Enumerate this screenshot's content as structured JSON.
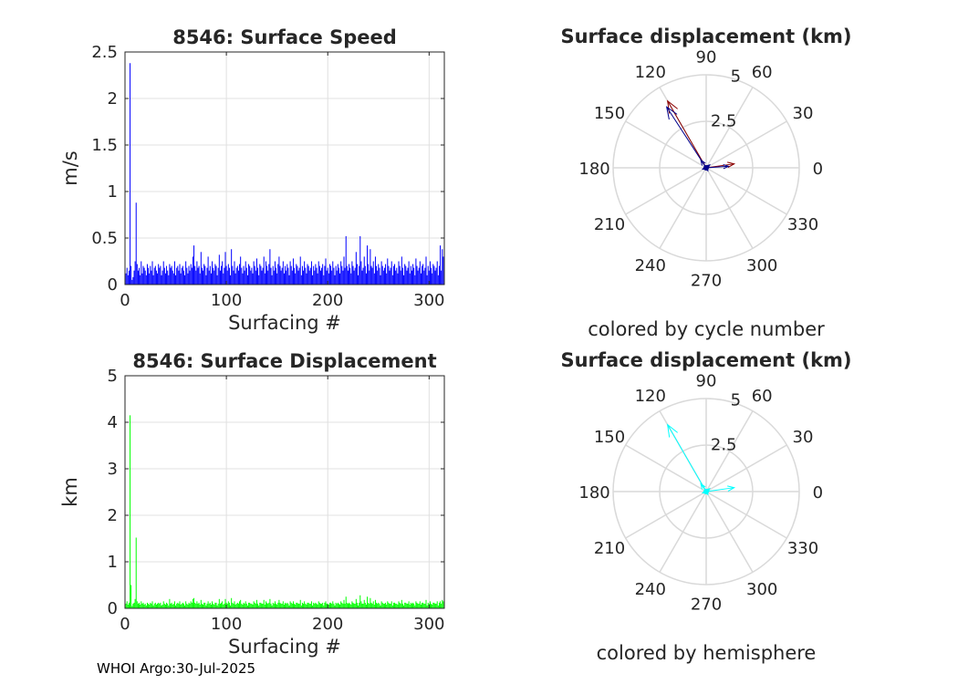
{
  "footer": "WHOI Argo:30-Jul-2025",
  "colors": {
    "speed": "#0000ff",
    "displacement": "#00ff00",
    "polar_cycle_a": "#8b0000",
    "polar_cycle_b": "#00008b",
    "polar_hemisphere": "#00ffff",
    "grid": "#d9d9d9"
  },
  "chart_data": [
    {
      "type": "bar",
      "title": "8546: Surface Speed",
      "xlabel": "Surfacing #",
      "ylabel": "m/s",
      "xlim": [
        0,
        315
      ],
      "ylim": [
        0,
        2.5
      ],
      "xticks": [
        0,
        100,
        200,
        300
      ],
      "yticks": [
        0,
        0.5,
        1,
        1.5,
        2,
        2.5
      ],
      "ytick_labels": [
        "0",
        "0.5",
        "1",
        "1.5",
        "2",
        "2.5"
      ],
      "grid": true,
      "x_start": 1,
      "values": [
        0.12,
        0.18,
        0.1,
        0.15,
        2.38,
        0.2,
        0.05,
        0.08,
        0.15,
        0.25,
        0.88,
        0.22,
        0.15,
        0.18,
        0.1,
        0.25,
        0.12,
        0.2,
        0.18,
        0.15,
        0.1,
        0.22,
        0.18,
        0.12,
        0.2,
        0.15,
        0.25,
        0.1,
        0.18,
        0.2,
        0.15,
        0.12,
        0.22,
        0.18,
        0.2,
        0.1,
        0.15,
        0.25,
        0.18,
        0.12,
        0.2,
        0.15,
        0.1,
        0.22,
        0.18,
        0.2,
        0.15,
        0.12,
        0.25,
        0.1,
        0.18,
        0.2,
        0.15,
        0.22,
        0.12,
        0.18,
        0.2,
        0.15,
        0.1,
        0.25,
        0.18,
        0.12,
        0.2,
        0.15,
        0.22,
        0.18,
        0.3,
        0.42,
        0.2,
        0.15,
        0.25,
        0.18,
        0.2,
        0.12,
        0.35,
        0.18,
        0.15,
        0.22,
        0.2,
        0.1,
        0.18,
        0.3,
        0.15,
        0.2,
        0.12,
        0.25,
        0.18,
        0.15,
        0.22,
        0.2,
        0.1,
        0.18,
        0.32,
        0.15,
        0.2,
        0.25,
        0.12,
        0.18,
        0.35,
        0.2,
        0.15,
        0.22,
        0.18,
        0.1,
        0.38,
        0.2,
        0.15,
        0.25,
        0.12,
        0.18,
        0.2,
        0.15,
        0.22,
        0.3,
        0.18,
        0.12,
        0.2,
        0.15,
        0.25,
        0.18,
        0.1,
        0.22,
        0.2,
        0.15,
        0.18,
        0.12,
        0.25,
        0.2,
        0.15,
        0.28,
        0.18,
        0.1,
        0.22,
        0.2,
        0.15,
        0.18,
        0.3,
        0.12,
        0.25,
        0.2,
        0.15,
        0.22,
        0.38,
        0.18,
        0.1,
        0.2,
        0.15,
        0.25,
        0.18,
        0.12,
        0.22,
        0.3,
        0.2,
        0.15,
        0.18,
        0.25,
        0.12,
        0.2,
        0.15,
        0.22,
        0.18,
        0.1,
        0.25,
        0.2,
        0.15,
        0.28,
        0.18,
        0.12,
        0.22,
        0.2,
        0.15,
        0.18,
        0.3,
        0.1,
        0.2,
        0.15,
        0.25,
        0.18,
        0.12,
        0.22,
        0.2,
        0.15,
        0.18,
        0.25,
        0.1,
        0.2,
        0.15,
        0.22,
        0.18,
        0.12,
        0.25,
        0.2,
        0.15,
        0.18,
        0.22,
        0.1,
        0.2,
        0.28,
        0.15,
        0.18,
        0.12,
        0.22,
        0.2,
        0.15,
        0.25,
        0.18,
        0.1,
        0.2,
        0.15,
        0.22,
        0.18,
        0.12,
        0.25,
        0.2,
        0.15,
        0.3,
        0.18,
        0.52,
        0.2,
        0.15,
        0.22,
        0.18,
        0.12,
        0.25,
        0.2,
        0.15,
        0.18,
        0.35,
        0.22,
        0.1,
        0.2,
        0.52,
        0.25,
        0.15,
        0.18,
        0.3,
        0.2,
        0.12,
        0.42,
        0.22,
        0.15,
        0.38,
        0.2,
        0.18,
        0.25,
        0.12,
        0.3,
        0.2,
        0.15,
        0.22,
        0.18,
        0.1,
        0.25,
        0.2,
        0.15,
        0.18,
        0.22,
        0.12,
        0.28,
        0.2,
        0.15,
        0.18,
        0.25,
        0.1,
        0.2,
        0.22,
        0.15,
        0.18,
        0.12,
        0.25,
        0.2,
        0.15,
        0.3,
        0.18,
        0.1,
        0.22,
        0.2,
        0.15,
        0.18,
        0.25,
        0.12,
        0.2,
        0.15,
        0.22,
        0.18,
        0.1,
        0.28,
        0.2,
        0.15,
        0.18,
        0.25,
        0.12,
        0.2,
        0.22,
        0.15,
        0.18,
        0.3,
        0.1,
        0.2,
        0.15,
        0.25,
        0.18,
        0.12,
        0.22,
        0.2,
        0.15,
        0.18,
        0.25,
        0.1,
        0.2,
        0.42,
        0.15,
        0.38,
        0.3
      ]
    },
    {
      "type": "bar",
      "title": "8546: Surface Displacement",
      "xlabel": "Surfacing #",
      "ylabel": "km",
      "xlim": [
        0,
        315
      ],
      "ylim": [
        0,
        5
      ],
      "xticks": [
        0,
        100,
        200,
        300
      ],
      "yticks": [
        0,
        1,
        2,
        3,
        4,
        5
      ],
      "ytick_labels": [
        "0",
        "1",
        "2",
        "3",
        "4",
        "5"
      ],
      "grid": true,
      "x_start": 1,
      "values": [
        0.1,
        0.15,
        0.08,
        0.12,
        4.15,
        0.5,
        0.05,
        0.1,
        0.12,
        0.2,
        1.52,
        0.15,
        0.1,
        0.12,
        0.08,
        0.15,
        0.1,
        0.12,
        0.08,
        0.1,
        0.06,
        0.12,
        0.1,
        0.08,
        0.12,
        0.1,
        0.15,
        0.06,
        0.1,
        0.12,
        0.08,
        0.1,
        0.12,
        0.1,
        0.12,
        0.06,
        0.08,
        0.15,
        0.1,
        0.08,
        0.12,
        0.1,
        0.06,
        0.2,
        0.1,
        0.12,
        0.08,
        0.1,
        0.15,
        0.06,
        0.1,
        0.12,
        0.1,
        0.15,
        0.08,
        0.1,
        0.12,
        0.1,
        0.06,
        0.15,
        0.1,
        0.08,
        0.12,
        0.1,
        0.15,
        0.12,
        0.2,
        0.22,
        0.12,
        0.1,
        0.15,
        0.1,
        0.12,
        0.08,
        0.18,
        0.1,
        0.08,
        0.12,
        0.12,
        0.06,
        0.1,
        0.15,
        0.1,
        0.12,
        0.08,
        0.15,
        0.1,
        0.08,
        0.12,
        0.12,
        0.06,
        0.1,
        0.2,
        0.1,
        0.12,
        0.15,
        0.08,
        0.1,
        0.2,
        0.12,
        0.1,
        0.15,
        0.12,
        0.06,
        0.22,
        0.12,
        0.1,
        0.15,
        0.08,
        0.1,
        0.12,
        0.1,
        0.15,
        0.18,
        0.1,
        0.08,
        0.12,
        0.1,
        0.15,
        0.1,
        0.06,
        0.12,
        0.12,
        0.1,
        0.1,
        0.08,
        0.15,
        0.12,
        0.1,
        0.18,
        0.1,
        0.06,
        0.12,
        0.12,
        0.1,
        0.1,
        0.18,
        0.08,
        0.15,
        0.12,
        0.1,
        0.12,
        0.2,
        0.1,
        0.06,
        0.12,
        0.1,
        0.15,
        0.1,
        0.08,
        0.12,
        0.18,
        0.12,
        0.1,
        0.1,
        0.15,
        0.08,
        0.12,
        0.1,
        0.12,
        0.1,
        0.06,
        0.15,
        0.12,
        0.1,
        0.15,
        0.1,
        0.08,
        0.12,
        0.12,
        0.1,
        0.1,
        0.18,
        0.06,
        0.12,
        0.1,
        0.15,
        0.1,
        0.08,
        0.12,
        0.12,
        0.1,
        0.1,
        0.15,
        0.06,
        0.12,
        0.1,
        0.12,
        0.1,
        0.08,
        0.15,
        0.12,
        0.1,
        0.1,
        0.12,
        0.06,
        0.12,
        0.15,
        0.1,
        0.1,
        0.08,
        0.12,
        0.12,
        0.1,
        0.15,
        0.1,
        0.06,
        0.12,
        0.1,
        0.12,
        0.1,
        0.08,
        0.15,
        0.12,
        0.1,
        0.18,
        0.1,
        0.25,
        0.12,
        0.1,
        0.12,
        0.1,
        0.08,
        0.15,
        0.12,
        0.1,
        0.1,
        0.2,
        0.12,
        0.06,
        0.12,
        0.28,
        0.15,
        0.1,
        0.1,
        0.18,
        0.12,
        0.08,
        0.25,
        0.12,
        0.1,
        0.22,
        0.12,
        0.1,
        0.15,
        0.08,
        0.18,
        0.12,
        0.1,
        0.12,
        0.1,
        0.06,
        0.15,
        0.12,
        0.1,
        0.1,
        0.12,
        0.08,
        0.15,
        0.12,
        0.1,
        0.1,
        0.15,
        0.06,
        0.12,
        0.12,
        0.1,
        0.1,
        0.08,
        0.15,
        0.12,
        0.1,
        0.18,
        0.1,
        0.06,
        0.12,
        0.12,
        0.1,
        0.1,
        0.15,
        0.08,
        0.12,
        0.1,
        0.12,
        0.1,
        0.06,
        0.15,
        0.12,
        0.1,
        0.1,
        0.15,
        0.08,
        0.12,
        0.12,
        0.1,
        0.1,
        0.18,
        0.06,
        0.12,
        0.1,
        0.15,
        0.1,
        0.08,
        0.12,
        0.12,
        0.1,
        0.1,
        0.15,
        0.06,
        0.12,
        0.15,
        0.1,
        0.18,
        0.15
      ]
    },
    {
      "type": "polar",
      "title": "Surface displacement (km)",
      "subtitle": "colored by cycle number",
      "rlim": [
        0,
        5
      ],
      "rticks": [
        2.5,
        5
      ],
      "rtick_labels": [
        "2.5",
        "5"
      ],
      "theta_ticks": [
        0,
        30,
        60,
        90,
        120,
        150,
        180,
        210,
        240,
        270,
        300,
        330
      ],
      "theta_tick_labels": [
        "0",
        "30",
        "60",
        "90",
        "120",
        "150",
        "180",
        "210",
        "240",
        "270",
        "300",
        "330"
      ],
      "vectors": [
        {
          "angle": 120,
          "r": 4.15,
          "color": "#8b0000"
        },
        {
          "angle": 123,
          "r": 3.9,
          "color": "#00008b"
        },
        {
          "angle": 8,
          "r": 1.52,
          "color": "#8b0000"
        },
        {
          "angle": 4,
          "r": 1.2,
          "color": "#00008b"
        },
        {
          "angle": 125,
          "r": 0.5,
          "color": "#00008b"
        },
        {
          "angle": 40,
          "r": 0.25,
          "color": "#00008b"
        },
        {
          "angle": 200,
          "r": 0.2,
          "color": "#00008b"
        },
        {
          "angle": 300,
          "r": 0.18,
          "color": "#00008b"
        }
      ]
    },
    {
      "type": "polar",
      "title": "Surface displacement (km)",
      "subtitle": "colored by hemisphere",
      "rlim": [
        0,
        5
      ],
      "rticks": [
        2.5,
        5
      ],
      "rtick_labels": [
        "2.5",
        "5"
      ],
      "theta_ticks": [
        0,
        30,
        60,
        90,
        120,
        150,
        180,
        210,
        240,
        270,
        300,
        330
      ],
      "theta_tick_labels": [
        "0",
        "30",
        "60",
        "90",
        "120",
        "150",
        "180",
        "210",
        "240",
        "270",
        "300",
        "330"
      ],
      "vectors": [
        {
          "angle": 120,
          "r": 4.15,
          "color": "#00ffff"
        },
        {
          "angle": 8,
          "r": 1.52,
          "color": "#00ffff"
        },
        {
          "angle": 125,
          "r": 0.5,
          "color": "#00ffff"
        },
        {
          "angle": 40,
          "r": 0.25,
          "color": "#00ffff"
        },
        {
          "angle": 200,
          "r": 0.2,
          "color": "#00ffff"
        },
        {
          "angle": 300,
          "r": 0.18,
          "color": "#00ffff"
        }
      ]
    }
  ]
}
